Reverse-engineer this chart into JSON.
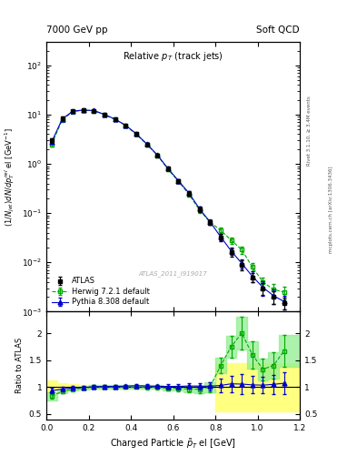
{
  "title_left": "7000 GeV pp",
  "title_right": "Soft QCD",
  "plot_title": "Relative p$_{T}$ (track jets)",
  "xlabel": "Charged Particle $\\tilde{p}_{T}$ el [GeV]",
  "ylabel_main": "(1/Njet)dN/dp$^{rel}_{T}$ el [GeV$^{-1}$]",
  "ylabel_ratio": "Ratio to ATLAS",
  "right_label_top": "Rivet 3.1.10, ≥ 3.4M events",
  "right_label_bot": "mcplots.cern.ch [arXiv:1306.3436]",
  "watermark": "ATLAS_2011_I919017",
  "xlim": [
    0.0,
    1.2
  ],
  "ylim_main": [
    0.001,
    300
  ],
  "ylim_ratio": [
    0.4,
    2.4
  ],
  "ratio_yticks": [
    0.5,
    1.0,
    1.5,
    2.0
  ],
  "ratio_yticklabels": [
    "0.5",
    "1",
    "1.5",
    "2"
  ],
  "atlas_x": [
    0.025,
    0.075,
    0.125,
    0.175,
    0.225,
    0.275,
    0.325,
    0.375,
    0.425,
    0.475,
    0.525,
    0.575,
    0.625,
    0.675,
    0.725,
    0.775,
    0.825,
    0.875,
    0.925,
    0.975,
    1.025,
    1.075,
    1.125
  ],
  "atlas_y": [
    3.0,
    8.5,
    12.0,
    12.5,
    12.0,
    10.0,
    8.0,
    6.0,
    4.0,
    2.5,
    1.5,
    0.8,
    0.45,
    0.25,
    0.12,
    0.065,
    0.032,
    0.016,
    0.009,
    0.005,
    0.003,
    0.002,
    0.0015
  ],
  "atlas_yerr": [
    0.3,
    0.5,
    0.6,
    0.6,
    0.5,
    0.4,
    0.3,
    0.25,
    0.2,
    0.15,
    0.1,
    0.06,
    0.04,
    0.025,
    0.015,
    0.008,
    0.005,
    0.003,
    0.002,
    0.001,
    0.0008,
    0.0006,
    0.0004
  ],
  "herwig_x": [
    0.025,
    0.075,
    0.125,
    0.175,
    0.225,
    0.275,
    0.325,
    0.375,
    0.425,
    0.475,
    0.525,
    0.575,
    0.625,
    0.675,
    0.725,
    0.775,
    0.825,
    0.875,
    0.925,
    0.975,
    1.025,
    1.075,
    1.125
  ],
  "herwig_y": [
    2.5,
    7.8,
    11.5,
    12.3,
    12.0,
    10.0,
    8.0,
    6.0,
    4.0,
    2.5,
    1.5,
    0.78,
    0.44,
    0.24,
    0.115,
    0.065,
    0.045,
    0.028,
    0.018,
    0.008,
    0.004,
    0.0028,
    0.0025
  ],
  "herwig_yerr": [
    0.25,
    0.4,
    0.5,
    0.5,
    0.45,
    0.35,
    0.28,
    0.22,
    0.18,
    0.13,
    0.09,
    0.055,
    0.035,
    0.022,
    0.013,
    0.007,
    0.006,
    0.004,
    0.003,
    0.0015,
    0.001,
    0.0008,
    0.0007
  ],
  "pythia_x": [
    0.025,
    0.075,
    0.125,
    0.175,
    0.225,
    0.275,
    0.325,
    0.375,
    0.425,
    0.475,
    0.525,
    0.575,
    0.625,
    0.675,
    0.725,
    0.775,
    0.825,
    0.875,
    0.925,
    0.975,
    1.025,
    1.075,
    1.125
  ],
  "pythia_y": [
    2.8,
    8.2,
    11.8,
    12.4,
    12.1,
    10.1,
    8.1,
    6.1,
    4.1,
    2.55,
    1.52,
    0.81,
    0.455,
    0.255,
    0.122,
    0.066,
    0.033,
    0.017,
    0.0095,
    0.0052,
    0.0031,
    0.0021,
    0.0016
  ],
  "pythia_yerr": [
    0.28,
    0.42,
    0.52,
    0.52,
    0.46,
    0.36,
    0.29,
    0.23,
    0.19,
    0.14,
    0.095,
    0.058,
    0.038,
    0.024,
    0.014,
    0.0075,
    0.005,
    0.003,
    0.0021,
    0.0013,
    0.001,
    0.0007,
    0.0005
  ],
  "herwig_ratio": [
    0.83,
    0.92,
    0.96,
    0.98,
    1.0,
    1.0,
    1.0,
    1.0,
    1.0,
    1.0,
    1.0,
    0.975,
    0.978,
    0.96,
    0.958,
    1.0,
    1.4,
    1.75,
    2.0,
    1.6,
    1.33,
    1.4,
    1.67
  ],
  "herwig_ratio_err": [
    0.05,
    0.04,
    0.03,
    0.03,
    0.03,
    0.03,
    0.03,
    0.03,
    0.03,
    0.04,
    0.04,
    0.04,
    0.05,
    0.06,
    0.07,
    0.09,
    0.15,
    0.2,
    0.3,
    0.25,
    0.2,
    0.25,
    0.3
  ],
  "pythia_ratio": [
    0.93,
    0.965,
    0.983,
    0.992,
    1.008,
    1.01,
    1.012,
    1.017,
    1.025,
    1.02,
    1.013,
    1.012,
    1.011,
    1.02,
    1.017,
    1.015,
    1.03,
    1.06,
    1.055,
    1.04,
    1.035,
    1.05,
    1.07
  ],
  "pythia_ratio_err": [
    0.05,
    0.04,
    0.03,
    0.025,
    0.025,
    0.025,
    0.025,
    0.025,
    0.025,
    0.03,
    0.03,
    0.035,
    0.04,
    0.05,
    0.06,
    0.08,
    0.12,
    0.15,
    0.18,
    0.16,
    0.15,
    0.18,
    0.2
  ],
  "atlas_band_edges": [
    0.0,
    0.05,
    0.1,
    0.15,
    0.2,
    0.25,
    0.3,
    0.35,
    0.4,
    0.45,
    0.5,
    0.55,
    0.6,
    0.65,
    0.7,
    0.75,
    0.8,
    0.85,
    0.9,
    0.95,
    1.0,
    1.05,
    1.1,
    1.15
  ],
  "atlas_band_lo": [
    0.88,
    0.93,
    0.95,
    0.97,
    0.975,
    0.975,
    0.975,
    0.975,
    0.975,
    0.975,
    0.975,
    0.975,
    0.975,
    0.975,
    0.975,
    0.975,
    0.55,
    0.55,
    0.55,
    0.55,
    0.55,
    0.55,
    0.55,
    0.55
  ],
  "atlas_band_hi": [
    1.12,
    1.07,
    1.05,
    1.03,
    1.025,
    1.025,
    1.025,
    1.025,
    1.025,
    1.025,
    1.025,
    1.025,
    1.025,
    1.025,
    1.025,
    1.025,
    1.45,
    1.45,
    1.45,
    1.45,
    1.45,
    1.45,
    1.45,
    1.45
  ],
  "herwig_band_edges": [
    0.0,
    0.05,
    0.1,
    0.15,
    0.2,
    0.25,
    0.3,
    0.35,
    0.4,
    0.45,
    0.5,
    0.55,
    0.6,
    0.65,
    0.7,
    0.75,
    0.8,
    0.85,
    0.9,
    0.95,
    1.0,
    1.05,
    1.1,
    1.15
  ],
  "herwig_band_lo": [
    0.75,
    0.88,
    0.93,
    0.95,
    0.97,
    0.97,
    0.97,
    0.97,
    0.97,
    0.97,
    0.97,
    0.94,
    0.94,
    0.91,
    0.89,
    0.91,
    1.25,
    1.55,
    1.7,
    1.35,
    1.13,
    1.15,
    1.37,
    1.37
  ],
  "herwig_band_hi": [
    0.91,
    0.96,
    0.99,
    1.01,
    1.03,
    1.03,
    1.03,
    1.03,
    1.03,
    1.03,
    1.03,
    1.01,
    1.015,
    1.01,
    1.025,
    1.09,
    1.55,
    1.95,
    2.3,
    1.85,
    1.53,
    1.65,
    1.97,
    1.97
  ],
  "atlas_color": "#000000",
  "herwig_color": "#00aa00",
  "pythia_color": "#0000cc",
  "herwig_band_color": "#90ee90",
  "atlas_band_color": "#ffff80"
}
